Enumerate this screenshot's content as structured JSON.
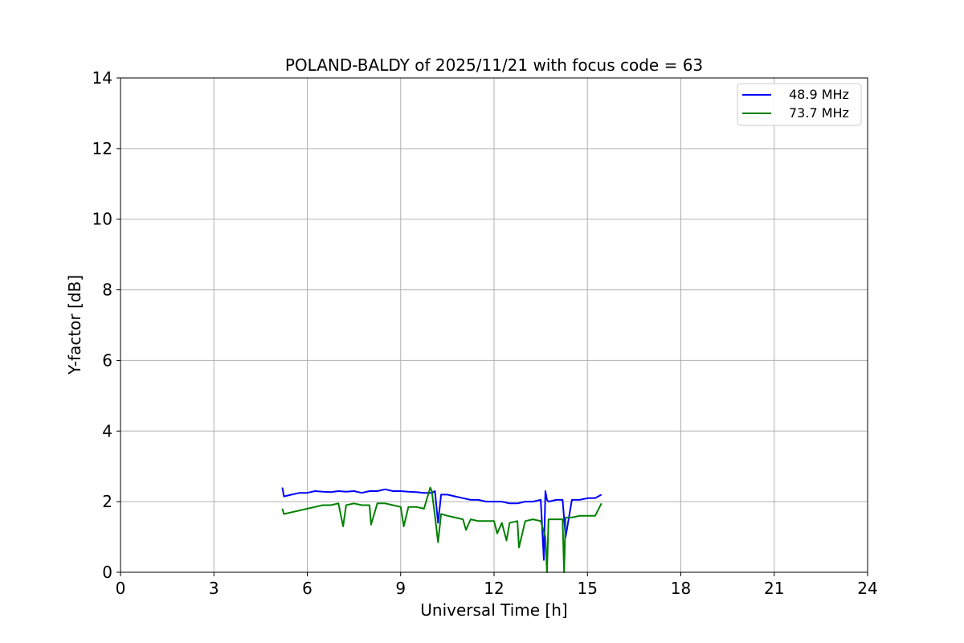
{
  "chart_data": {
    "type": "line",
    "title": "POLAND-BALDY of 2025/11/21 with focus code = 63",
    "xlabel": "Universal Time [h]",
    "ylabel": "Y-factor [dB]",
    "xlim": [
      0,
      24
    ],
    "ylim": [
      0,
      14
    ],
    "xticks": [
      0,
      3,
      6,
      9,
      12,
      15,
      18,
      21,
      24
    ],
    "yticks": [
      0,
      2,
      4,
      6,
      8,
      10,
      12,
      14
    ],
    "grid": true,
    "legend_position": "top-right",
    "series": [
      {
        "name": "48.9 MHz",
        "color": "#0000ff",
        "x": [
          5.2,
          5.25,
          5.5,
          5.75,
          6.0,
          6.25,
          6.5,
          6.75,
          7.0,
          7.25,
          7.5,
          7.75,
          8.0,
          8.25,
          8.5,
          8.75,
          9.0,
          9.25,
          9.5,
          9.75,
          10.0,
          10.1,
          10.2,
          10.3,
          10.5,
          10.75,
          11.0,
          11.25,
          11.5,
          11.75,
          12.0,
          12.25,
          12.5,
          12.75,
          13.0,
          13.25,
          13.5,
          13.6,
          13.65,
          13.7,
          13.75,
          14.0,
          14.2,
          14.3,
          14.5,
          14.75,
          15.0,
          15.25,
          15.45
        ],
        "y": [
          2.4,
          2.15,
          2.2,
          2.25,
          2.25,
          2.3,
          2.28,
          2.27,
          2.3,
          2.28,
          2.3,
          2.25,
          2.3,
          2.3,
          2.35,
          2.3,
          2.3,
          2.28,
          2.27,
          2.25,
          2.25,
          2.3,
          1.4,
          2.2,
          2.2,
          2.15,
          2.1,
          2.05,
          2.05,
          2.0,
          2.0,
          2.0,
          1.95,
          1.95,
          2.0,
          2.0,
          2.05,
          0.35,
          2.3,
          2.05,
          2.0,
          2.05,
          2.05,
          1.0,
          2.05,
          2.05,
          2.1,
          2.1,
          2.2
        ]
      },
      {
        "name": "73.7 MHz",
        "color": "#008000",
        "x": [
          5.2,
          5.25,
          5.5,
          5.75,
          6.0,
          6.25,
          6.5,
          6.75,
          7.0,
          7.15,
          7.25,
          7.5,
          7.75,
          8.0,
          8.05,
          8.25,
          8.5,
          8.75,
          9.0,
          9.1,
          9.25,
          9.5,
          9.75,
          9.95,
          10.0,
          10.1,
          10.2,
          10.3,
          10.5,
          10.75,
          11.0,
          11.1,
          11.25,
          11.5,
          11.75,
          12.0,
          12.1,
          12.25,
          12.4,
          12.5,
          12.75,
          12.8,
          13.0,
          13.25,
          13.5,
          13.65,
          13.7,
          13.75,
          14.0,
          14.2,
          14.25,
          14.3,
          14.5,
          14.75,
          15.0,
          15.25,
          15.45
        ],
        "y": [
          1.8,
          1.65,
          1.7,
          1.75,
          1.8,
          1.85,
          1.9,
          1.9,
          1.95,
          1.3,
          1.9,
          1.95,
          1.9,
          1.9,
          1.35,
          1.95,
          1.95,
          1.9,
          1.85,
          1.3,
          1.85,
          1.85,
          1.8,
          2.4,
          2.3,
          1.6,
          0.85,
          1.65,
          1.6,
          1.55,
          1.5,
          1.2,
          1.5,
          1.45,
          1.45,
          1.45,
          1.1,
          1.4,
          0.9,
          1.4,
          1.45,
          0.7,
          1.45,
          1.5,
          1.45,
          1.0,
          0.0,
          1.5,
          1.5,
          1.5,
          0.0,
          1.55,
          1.55,
          1.6,
          1.6,
          1.6,
          1.95
        ]
      }
    ]
  }
}
